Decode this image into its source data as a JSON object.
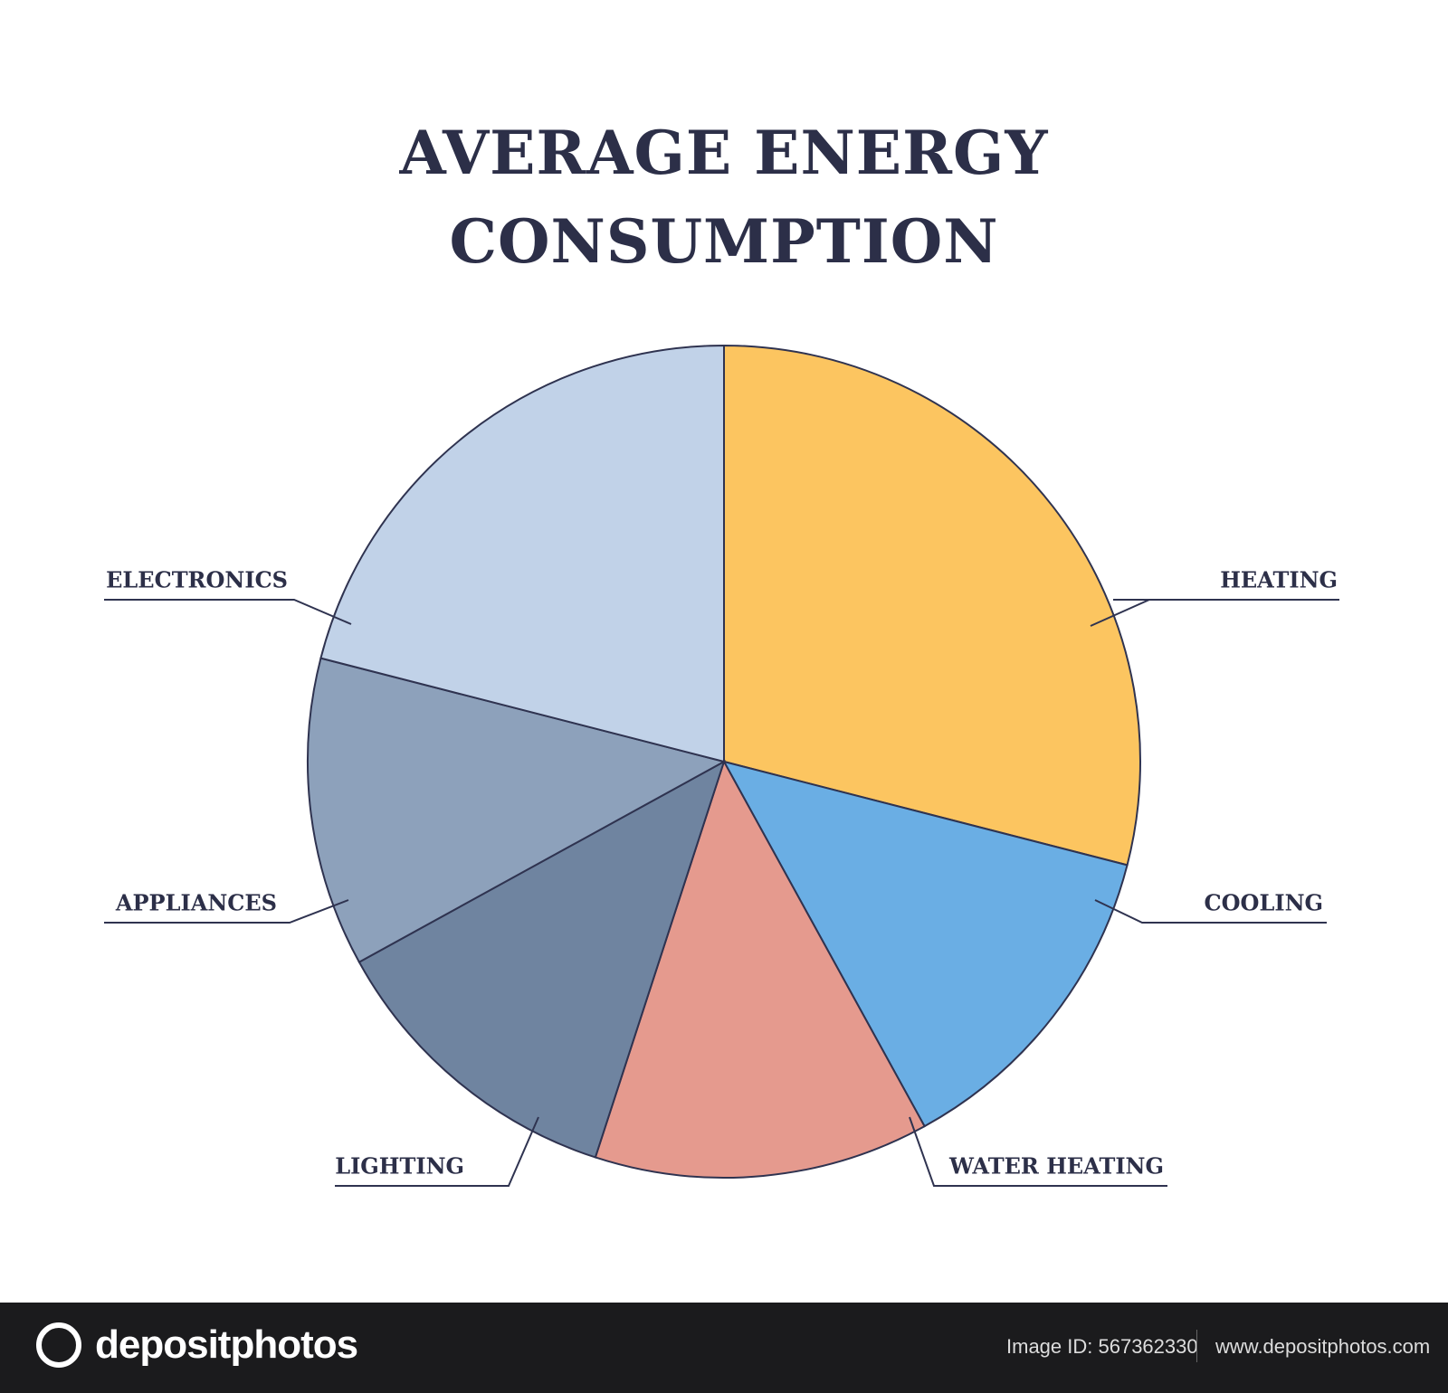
{
  "chart_data": {
    "type": "pie",
    "title": "AVERAGE ENERGY CONSUMPTION",
    "categories": [
      "HEATING",
      "COOLING",
      "WATER HEATING",
      "LIGHTING",
      "APPLIANCES",
      "ELECTRONICS"
    ],
    "values": [
      29,
      13,
      13,
      12,
      12,
      21
    ],
    "colors": [
      "#fcc560",
      "#6aaee4",
      "#e59a8e",
      "#6f84a0",
      "#8da1bb",
      "#c1d2e8"
    ]
  },
  "footer": {
    "brand": "depositphotos",
    "image_id": "Image ID: 567362330",
    "url": "www.depositphotos.com"
  }
}
